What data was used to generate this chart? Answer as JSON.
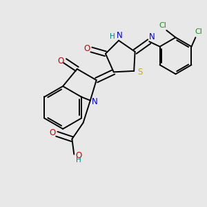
{
  "bg_color": "#e8e8e8",
  "bond_color": "#000000",
  "atom_colors": {
    "N": "#0000cc",
    "O": "#cc0000",
    "S": "#ccaa00",
    "Cl": "#228B22",
    "NH": "#008080",
    "OH": "#cc0000",
    "H": "#008080"
  }
}
